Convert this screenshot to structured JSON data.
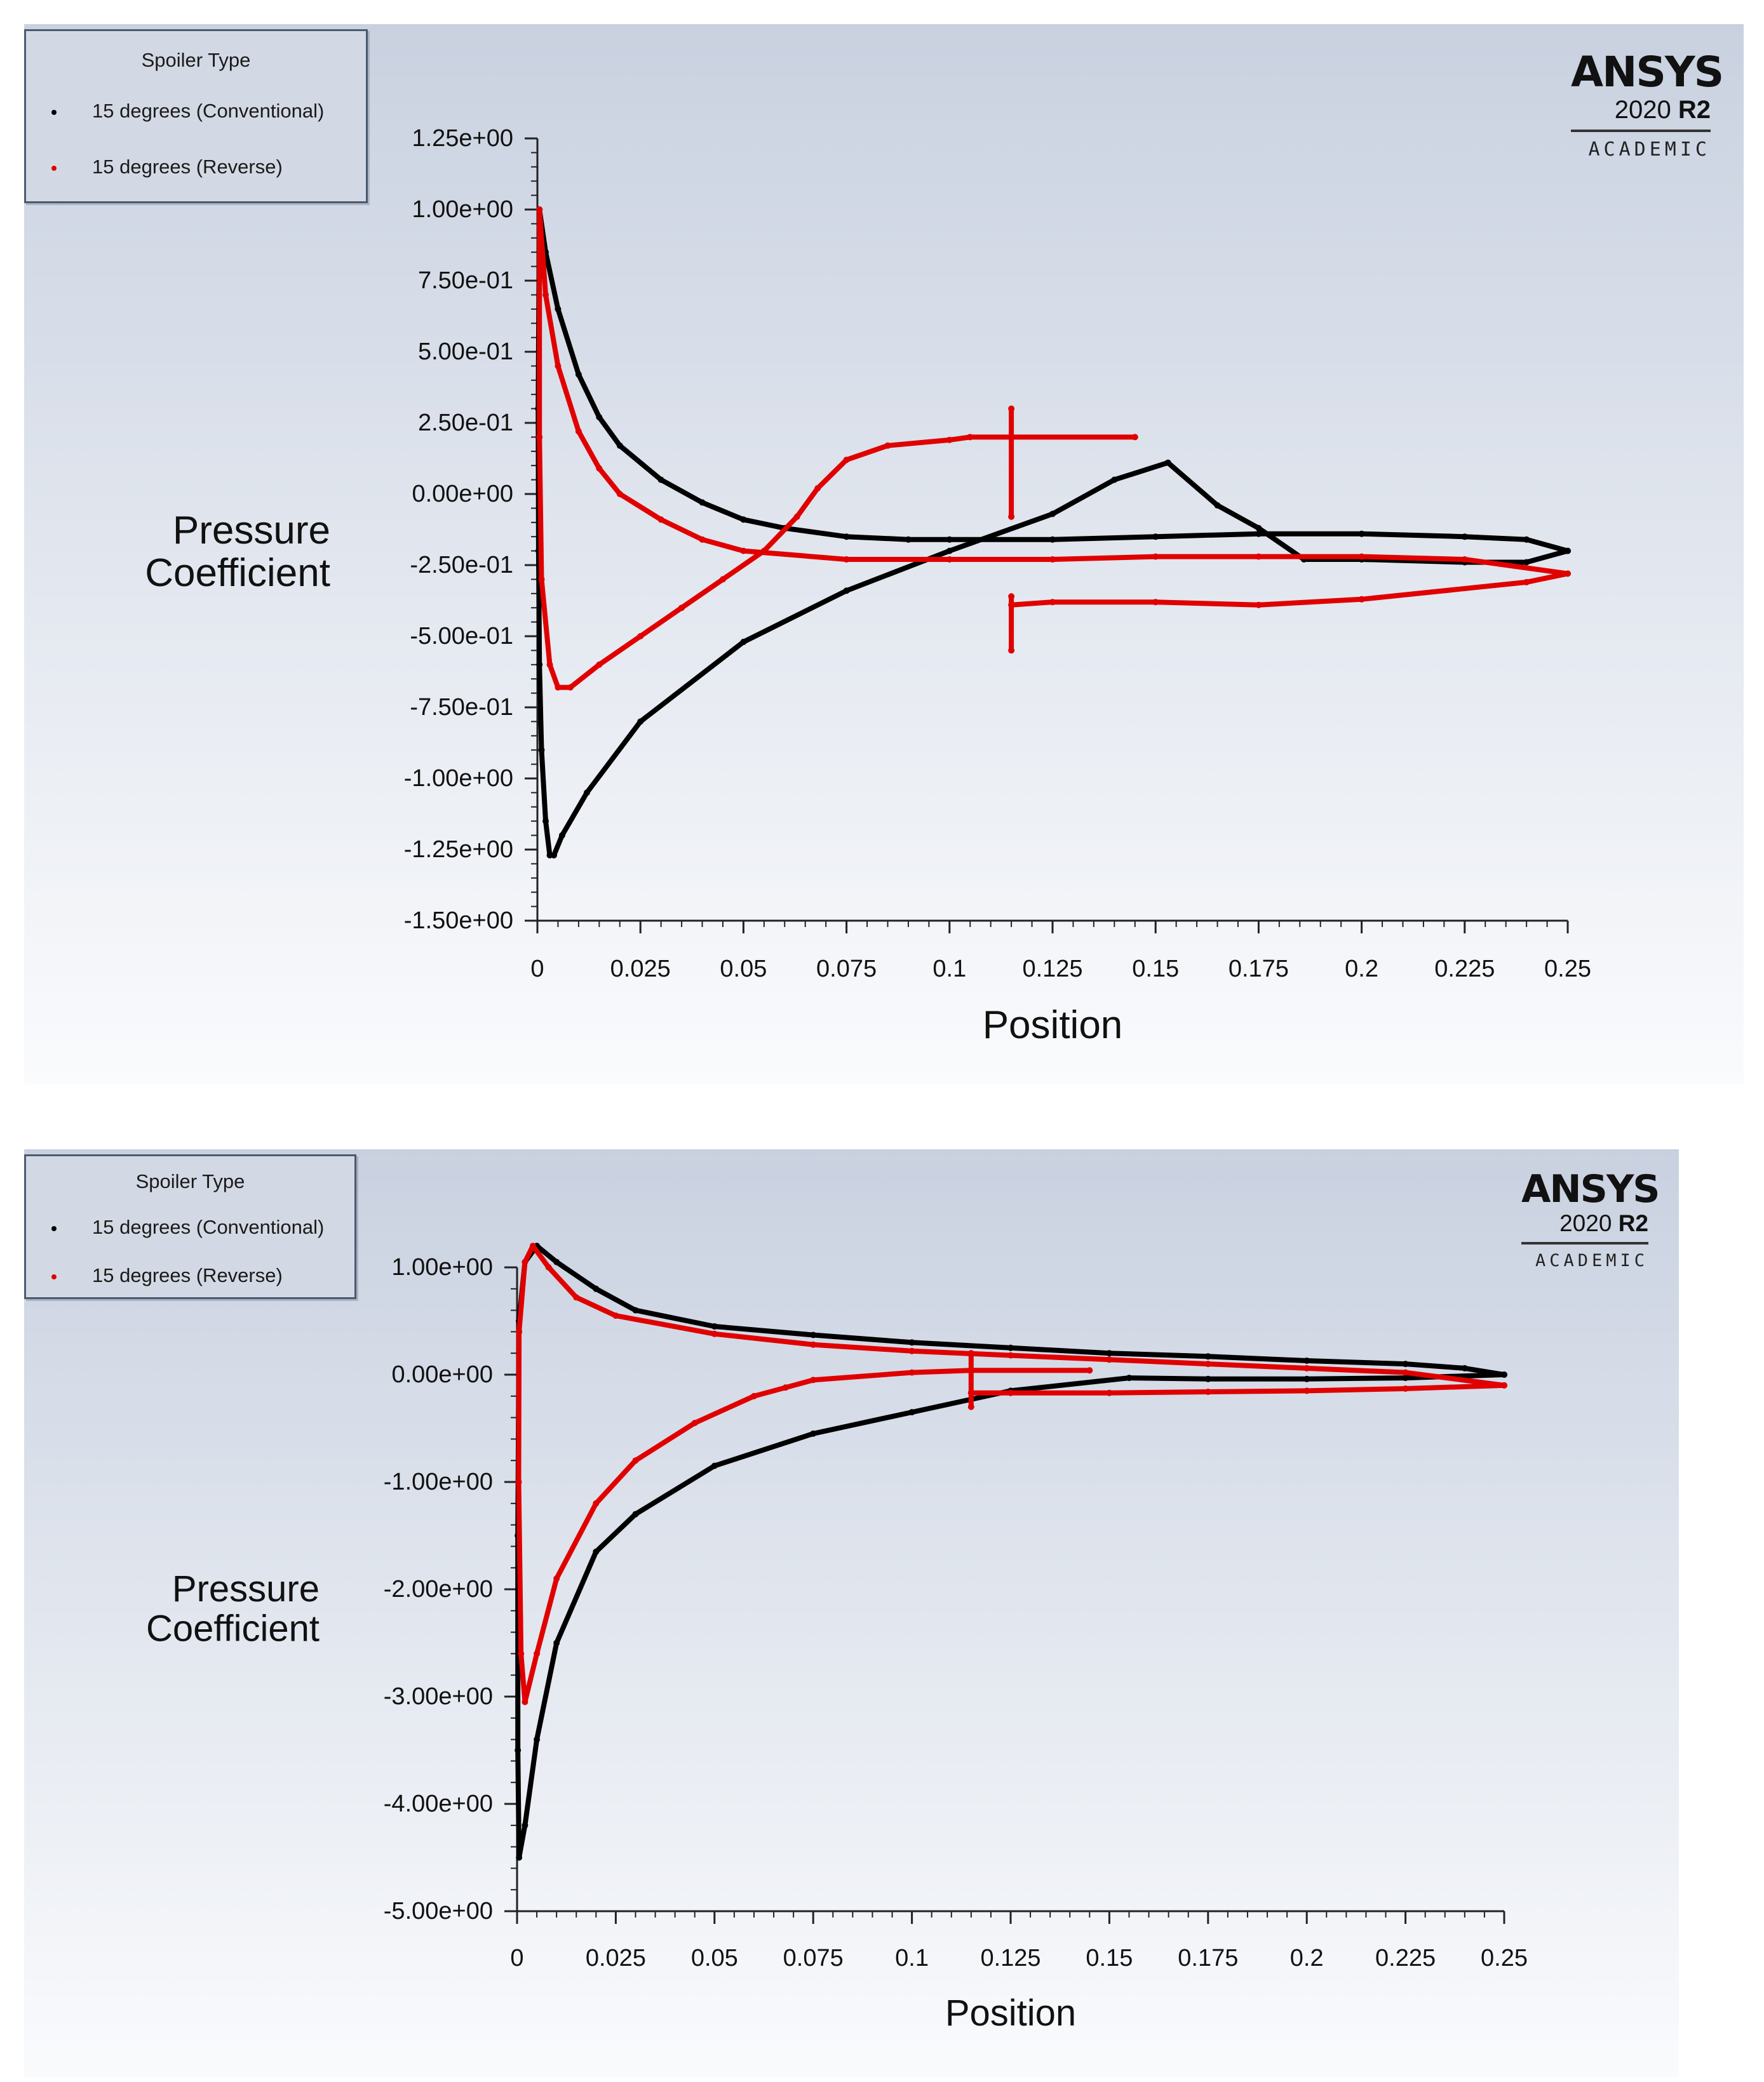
{
  "charts": [
    {
      "legend": {
        "title": "Spoiler Type",
        "items": [
          {
            "label": "15 degrees (Conventional)",
            "color": "#000000"
          },
          {
            "label": "15 degrees (Reverse)",
            "color": "#e00000"
          }
        ]
      },
      "branding": {
        "name": "ANSYS",
        "version_year": "2020",
        "version_release": "R2",
        "edition": "ACADEMIC"
      }
    },
    {
      "legend": {
        "title": "Spoiler Type",
        "items": [
          {
            "label": "15 degrees (Conventional)",
            "color": "#000000"
          },
          {
            "label": "15 degrees (Reverse)",
            "color": "#e00000"
          }
        ]
      },
      "branding": {
        "name": "ANSYS",
        "version_year": "2020",
        "version_release": "R2",
        "edition": "ACADEMIC"
      }
    }
  ],
  "chart_data": [
    {
      "type": "scatter",
      "title": "",
      "xlabel": "Position",
      "ylabel": "Pressure Coefficient",
      "xlim": [
        0,
        0.25
      ],
      "ylim": [
        -1.5,
        1.25
      ],
      "xticks": [
        "0",
        "0.025",
        "0.05",
        "0.075",
        "0.1",
        "0.125",
        "0.15",
        "0.175",
        "0.2",
        "0.225",
        "0.25"
      ],
      "yticks": [
        "1.25e+00",
        "1.00e+00",
        "7.50e-01",
        "5.00e-01",
        "2.50e-01",
        "0.00e+00",
        "-2.50e-01",
        "-5.00e-01",
        "-7.50e-01",
        "-1.00e+00",
        "-1.25e+00",
        "-1.50e+00"
      ],
      "series": [
        {
          "name": "15 degrees (Conventional)",
          "color": "#000000",
          "segments": [
            [
              [
                0.0005,
                1.0
              ],
              [
                0.002,
                0.85
              ],
              [
                0.005,
                0.65
              ],
              [
                0.01,
                0.42
              ],
              [
                0.015,
                0.27
              ],
              [
                0.02,
                0.17
              ],
              [
                0.03,
                0.05
              ],
              [
                0.04,
                -0.03
              ],
              [
                0.05,
                -0.09
              ],
              [
                0.06,
                -0.12
              ],
              [
                0.075,
                -0.15
              ],
              [
                0.09,
                -0.16
              ],
              [
                0.1,
                -0.16
              ],
              [
                0.125,
                -0.16
              ],
              [
                0.15,
                -0.15
              ],
              [
                0.175,
                -0.14
              ],
              [
                0.2,
                -0.14
              ],
              [
                0.225,
                -0.15
              ],
              [
                0.24,
                -0.16
              ],
              [
                0.25,
                -0.2
              ]
            ],
            [
              [
                0.25,
                -0.2
              ],
              [
                0.24,
                -0.24
              ],
              [
                0.225,
                -0.24
              ],
              [
                0.2,
                -0.23
              ],
              [
                0.186,
                -0.23
              ],
              [
                0.175,
                -0.12
              ],
              [
                0.165,
                -0.04
              ],
              [
                0.153,
                0.11
              ],
              [
                0.14,
                0.05
              ],
              [
                0.125,
                -0.07
              ],
              [
                0.1,
                -0.2
              ],
              [
                0.075,
                -0.34
              ],
              [
                0.05,
                -0.52
              ],
              [
                0.025,
                -0.8
              ],
              [
                0.012,
                -1.05
              ],
              [
                0.006,
                -1.2
              ],
              [
                0.004,
                -1.27
              ],
              [
                0.003,
                -1.27
              ],
              [
                0.002,
                -1.15
              ],
              [
                0.001,
                -0.9
              ],
              [
                0.0005,
                -0.6
              ],
              [
                0.0003,
                -0.2
              ],
              [
                0.0002,
                0.3
              ],
              [
                0.0005,
                1.0
              ]
            ]
          ]
        },
        {
          "name": "15 degrees (Reverse)",
          "color": "#e00000",
          "segments": [
            [
              [
                0.0005,
                1.0
              ],
              [
                0.002,
                0.7
              ],
              [
                0.005,
                0.45
              ],
              [
                0.01,
                0.22
              ],
              [
                0.015,
                0.09
              ],
              [
                0.02,
                0.0
              ],
              [
                0.03,
                -0.09
              ],
              [
                0.04,
                -0.16
              ],
              [
                0.05,
                -0.2
              ],
              [
                0.075,
                -0.23
              ],
              [
                0.1,
                -0.23
              ],
              [
                0.125,
                -0.23
              ],
              [
                0.15,
                -0.22
              ],
              [
                0.175,
                -0.22
              ],
              [
                0.2,
                -0.22
              ],
              [
                0.225,
                -0.23
              ],
              [
                0.25,
                -0.28
              ]
            ],
            [
              [
                0.25,
                -0.28
              ],
              [
                0.24,
                -0.31
              ],
              [
                0.2,
                -0.37
              ],
              [
                0.175,
                -0.39
              ],
              [
                0.15,
                -0.38
              ],
              [
                0.125,
                -0.38
              ],
              [
                0.115,
                -0.39
              ]
            ],
            [
              [
                0.115,
                0.3
              ],
              [
                0.115,
                -0.08
              ]
            ],
            [
              [
                0.115,
                0.2
              ],
              [
                0.145,
                0.2
              ]
            ],
            [
              [
                0.115,
                0.2
              ],
              [
                0.105,
                0.2
              ],
              [
                0.1,
                0.19
              ],
              [
                0.085,
                0.17
              ],
              [
                0.075,
                0.12
              ],
              [
                0.068,
                0.02
              ],
              [
                0.063,
                -0.08
              ],
              [
                0.055,
                -0.2
              ],
              [
                0.045,
                -0.3
              ],
              [
                0.035,
                -0.4
              ],
              [
                0.025,
                -0.5
              ],
              [
                0.015,
                -0.6
              ],
              [
                0.008,
                -0.68
              ],
              [
                0.005,
                -0.68
              ],
              [
                0.003,
                -0.6
              ],
              [
                0.001,
                -0.3
              ],
              [
                0.0005,
                0.2
              ],
              [
                0.0005,
                1.0
              ]
            ],
            [
              [
                0.115,
                -0.36
              ],
              [
                0.115,
                -0.55
              ]
            ]
          ]
        }
      ]
    },
    {
      "type": "scatter",
      "title": "",
      "xlabel": "Position",
      "ylabel": "Pressure Coefficient",
      "xlim": [
        0,
        0.25
      ],
      "ylim": [
        -5.0,
        1.0
      ],
      "xticks": [
        "0",
        "0.025",
        "0.05",
        "0.075",
        "0.1",
        "0.125",
        "0.15",
        "0.175",
        "0.2",
        "0.225",
        "0.25"
      ],
      "yticks": [
        "1.00e+00",
        "0.00e+00",
        "-1.00e+00",
        "-2.00e+00",
        "-3.00e+00",
        "-4.00e+00",
        "-5.00e+00"
      ],
      "series": [
        {
          "name": "15 degrees (Conventional)",
          "color": "#000000",
          "segments": [
            [
              [
                0.0005,
                0.5
              ],
              [
                0.002,
                1.05
              ],
              [
                0.005,
                1.2
              ],
              [
                0.01,
                1.05
              ],
              [
                0.02,
                0.8
              ],
              [
                0.03,
                0.6
              ],
              [
                0.05,
                0.45
              ],
              [
                0.075,
                0.37
              ],
              [
                0.1,
                0.3
              ],
              [
                0.125,
                0.25
              ],
              [
                0.15,
                0.2
              ],
              [
                0.175,
                0.17
              ],
              [
                0.2,
                0.13
              ],
              [
                0.225,
                0.1
              ],
              [
                0.24,
                0.06
              ],
              [
                0.25,
                0.0
              ]
            ],
            [
              [
                0.25,
                0.0
              ],
              [
                0.225,
                -0.03
              ],
              [
                0.2,
                -0.04
              ],
              [
                0.175,
                -0.04
              ],
              [
                0.155,
                -0.03
              ],
              [
                0.125,
                -0.15
              ],
              [
                0.1,
                -0.35
              ],
              [
                0.075,
                -0.55
              ],
              [
                0.05,
                -0.85
              ],
              [
                0.03,
                -1.3
              ],
              [
                0.02,
                -1.65
              ],
              [
                0.01,
                -2.5
              ],
              [
                0.005,
                -3.4
              ],
              [
                0.002,
                -4.2
              ],
              [
                0.0005,
                -4.5
              ],
              [
                0.0002,
                -3.5
              ],
              [
                0.0002,
                -1.5
              ],
              [
                0.0005,
                0.5
              ]
            ]
          ]
        },
        {
          "name": "15 degrees (Reverse)",
          "color": "#e00000",
          "segments": [
            [
              [
                0.0005,
                0.4
              ],
              [
                0.002,
                1.05
              ],
              [
                0.004,
                1.2
              ],
              [
                0.008,
                1.0
              ],
              [
                0.015,
                0.72
              ],
              [
                0.025,
                0.55
              ],
              [
                0.05,
                0.38
              ],
              [
                0.075,
                0.28
              ],
              [
                0.1,
                0.22
              ],
              [
                0.125,
                0.18
              ],
              [
                0.15,
                0.14
              ],
              [
                0.175,
                0.1
              ],
              [
                0.2,
                0.06
              ],
              [
                0.225,
                0.02
              ],
              [
                0.25,
                -0.1
              ]
            ],
            [
              [
                0.25,
                -0.1
              ],
              [
                0.225,
                -0.13
              ],
              [
                0.2,
                -0.15
              ],
              [
                0.175,
                -0.16
              ],
              [
                0.15,
                -0.17
              ],
              [
                0.125,
                -0.17
              ],
              [
                0.115,
                -0.17
              ]
            ],
            [
              [
                0.115,
                0.2
              ],
              [
                0.115,
                -0.3
              ]
            ],
            [
              [
                0.115,
                0.04
              ],
              [
                0.145,
                0.04
              ]
            ],
            [
              [
                0.115,
                0.04
              ],
              [
                0.1,
                0.02
              ],
              [
                0.075,
                -0.05
              ],
              [
                0.068,
                -0.12
              ],
              [
                0.06,
                -0.2
              ],
              [
                0.045,
                -0.45
              ],
              [
                0.03,
                -0.8
              ],
              [
                0.02,
                -1.2
              ],
              [
                0.01,
                -1.9
              ],
              [
                0.005,
                -2.6
              ],
              [
                0.002,
                -3.05
              ],
              [
                0.001,
                -2.6
              ],
              [
                0.0004,
                -1.0
              ],
              [
                0.0005,
                0.4
              ]
            ]
          ]
        }
      ]
    }
  ]
}
